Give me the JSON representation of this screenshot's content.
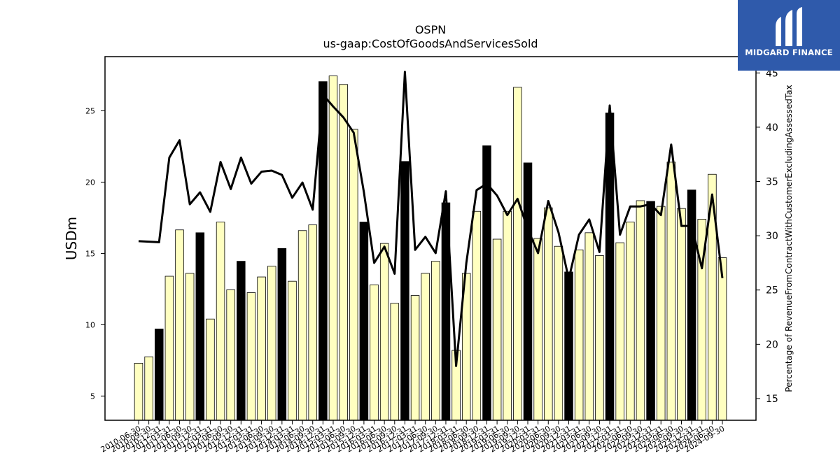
{
  "logo": {
    "text": "MIDGARD FINANCE",
    "color": "#2f5aab"
  },
  "chart_data": {
    "type": "bar",
    "title": "OSPN",
    "subtitle": "us-gaap:CostOfGoodsAndServicesSold",
    "ylabel": "USDm",
    "y2label": "Percentage of RevenueFromContractWithCustomerExcludingAssessedTax",
    "ylim": [
      3.3,
      28.8
    ],
    "y2lim": [
      13,
      46.5
    ],
    "yticks": [
      5,
      10,
      15,
      20,
      25
    ],
    "y2ticks": [
      15,
      20,
      25,
      30,
      35,
      40,
      45
    ],
    "colors": {
      "bar": "#ffffc0",
      "bar_highlight": "#000000",
      "line": "#000000"
    },
    "x": [
      "2010-06-30",
      "2010-09-30",
      "2010-12-31",
      "2011-03-31",
      "2011-06-30",
      "2011-09-30",
      "2011-12-31",
      "2012-03-31",
      "2012-06-30",
      "2012-09-30",
      "2012-12-31",
      "2013-03-31",
      "2013-06-30",
      "2013-09-30",
      "2013-12-31",
      "2014-03-31",
      "2014-06-30",
      "2014-09-30",
      "2014-12-31",
      "2015-03-31",
      "2015-06-30",
      "2015-09-30",
      "2015-12-31",
      "2016-03-31",
      "2016-06-30",
      "2016-09-30",
      "2016-12-31",
      "2017-03-31",
      "2017-06-30",
      "2017-09-30",
      "2017-12-31",
      "2018-03-31",
      "2018-06-30",
      "2018-09-30",
      "2018-12-31",
      "2019-03-31",
      "2019-06-30",
      "2019-09-30",
      "2019-12-31",
      "2020-03-31",
      "2020-06-30",
      "2020-09-30",
      "2020-12-31",
      "2021-03-31",
      "2021-06-30",
      "2021-09-30",
      "2021-12-31",
      "2022-03-31",
      "2022-06-30",
      "2022-09-30",
      "2022-12-31",
      "2023-03-31",
      "2023-06-30",
      "2023-09-30",
      "2023-12-31",
      "2024-03-31",
      "2024-06-30",
      "2024-09-30"
    ],
    "series": [
      {
        "kind": "bar",
        "values": [
          7.3,
          7.75,
          9.7,
          13.4,
          16.65,
          13.6,
          16.45,
          10.4,
          17.2,
          12.45,
          14.45,
          12.25,
          13.35,
          14.1,
          15.35,
          13.05,
          16.6,
          17.0,
          27.05,
          27.45,
          26.85,
          23.7,
          17.2,
          12.8,
          15.7,
          11.5,
          21.45,
          12.05,
          13.6,
          14.45,
          18.55,
          8.2,
          13.6,
          17.95,
          22.55,
          16.0,
          17.95,
          26.65,
          21.35,
          16.05,
          18.2,
          15.5,
          13.7,
          15.25,
          16.45,
          14.85,
          24.85,
          15.75,
          17.2,
          18.7,
          18.65,
          18.3,
          21.4,
          18.15,
          19.45,
          17.4,
          20.55,
          14.7
        ],
        "highlight": [
          false,
          false,
          true,
          false,
          false,
          false,
          true,
          false,
          false,
          false,
          true,
          false,
          false,
          false,
          true,
          false,
          false,
          false,
          true,
          false,
          false,
          false,
          true,
          false,
          false,
          false,
          true,
          false,
          false,
          false,
          true,
          false,
          false,
          false,
          true,
          false,
          false,
          false,
          true,
          false,
          false,
          false,
          true,
          false,
          false,
          false,
          true,
          false,
          false,
          false,
          true,
          false,
          false,
          false,
          true,
          false,
          false,
          false
        ]
      },
      {
        "kind": "line",
        "axis": "right",
        "values": [
          29.5,
          29.45,
          29.4,
          37.2,
          38.8,
          32.9,
          34.0,
          32.2,
          36.8,
          34.3,
          37.2,
          34.8,
          35.9,
          36.0,
          35.6,
          33.5,
          34.9,
          32.4,
          43.0,
          41.9,
          40.9,
          39.5,
          34.0,
          27.5,
          29.0,
          26.5,
          45.1,
          28.7,
          29.9,
          28.4,
          34.1,
          18.0,
          27.5,
          34.2,
          34.8,
          33.7,
          31.9,
          33.4,
          30.6,
          28.4,
          33.2,
          30.3,
          26.0,
          30.1,
          31.5,
          28.5,
          42.0,
          30.1,
          32.7,
          32.7,
          32.9,
          31.9,
          38.4,
          30.9,
          30.9,
          27.0,
          33.8,
          26.1
        ]
      }
    ]
  }
}
